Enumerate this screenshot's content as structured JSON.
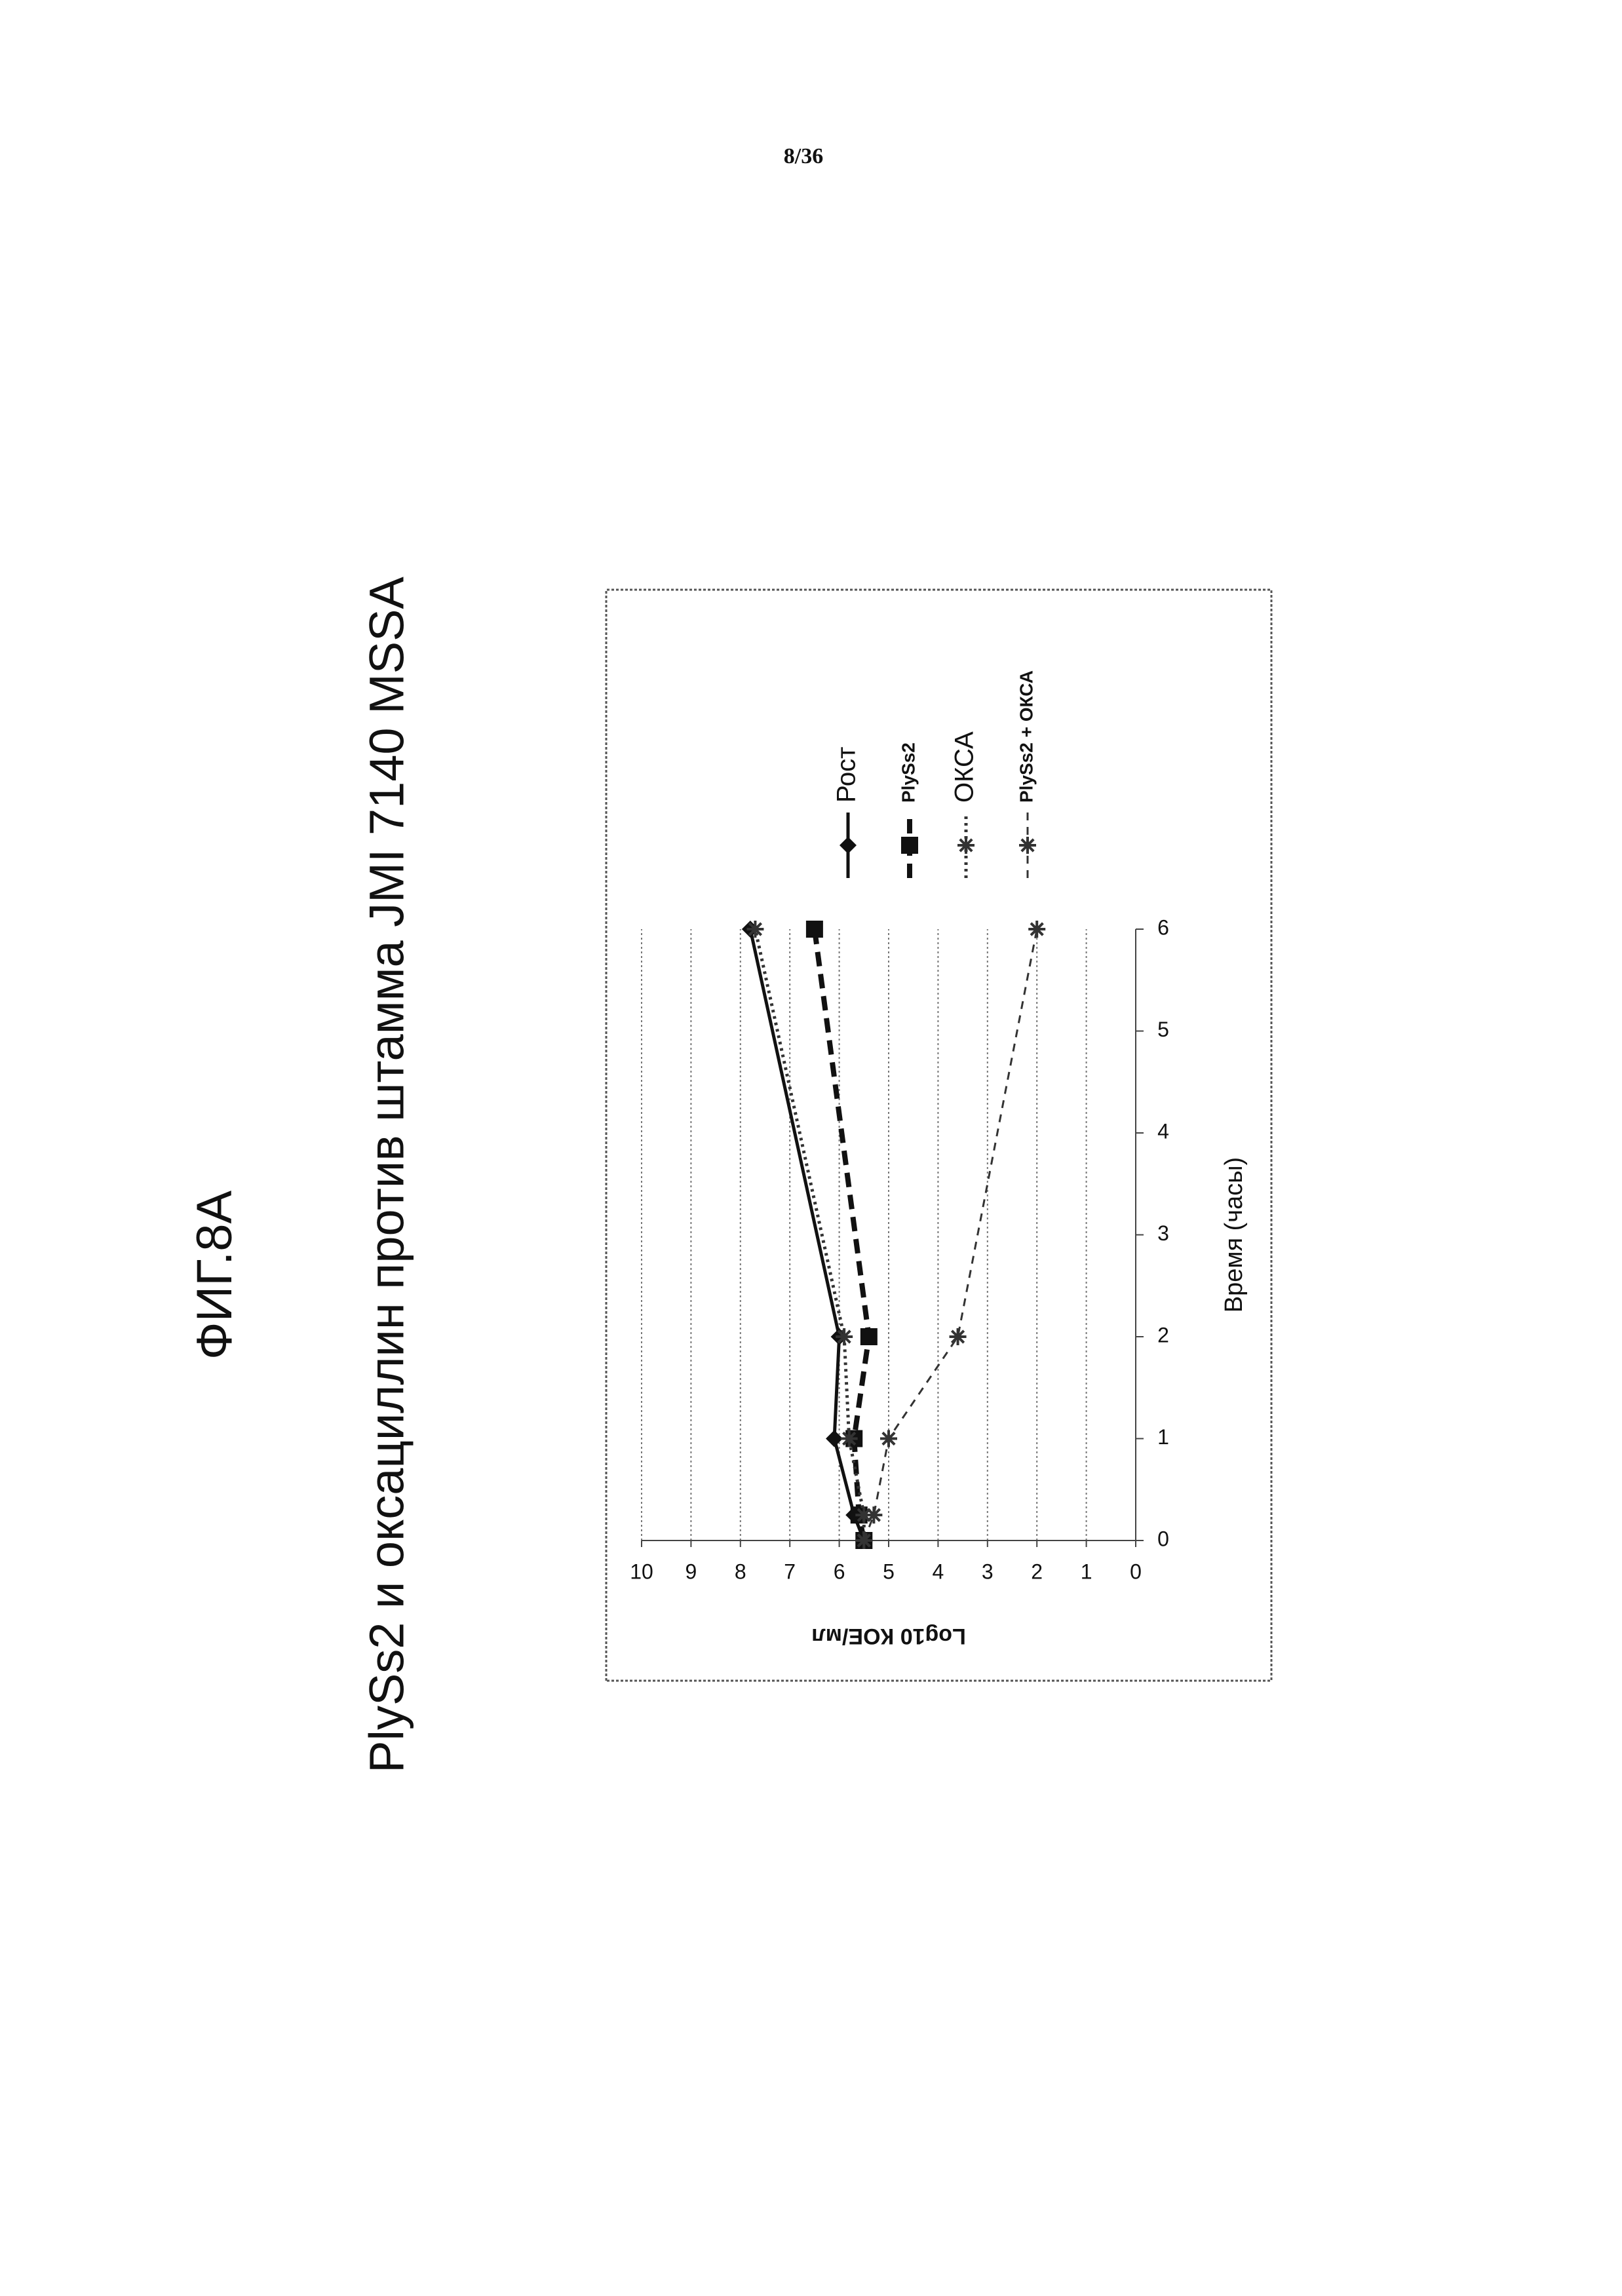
{
  "page_number": "8/36",
  "figure_label": "ФИГ.8А",
  "chart_data": {
    "type": "line",
    "title": "PlySs2 и оксациллин против штамма JMI 7140 MSSA",
    "x_label": "Время (часы)",
    "y_label": "Log10 КОЕ/мл",
    "x": [
      0,
      0.25,
      1,
      2,
      6
    ],
    "xlim": [
      0,
      6
    ],
    "xticks": [
      0,
      1,
      2,
      3,
      4,
      5,
      6
    ],
    "ylim": [
      0,
      10
    ],
    "yticks": [
      0,
      1,
      2,
      3,
      4,
      5,
      6,
      7,
      8,
      9,
      10
    ],
    "grid": true,
    "series": [
      {
        "name": "Рост",
        "color": "#111111",
        "marker": "diamond",
        "dash": "solid",
        "values": [
          5.5,
          5.7,
          6.1,
          6.0,
          7.8
        ]
      },
      {
        "name": "PlySs2",
        "color": "#111111",
        "marker": "square",
        "dash": "dashed",
        "values": [
          5.5,
          5.6,
          5.7,
          5.4,
          6.5
        ]
      },
      {
        "name": "ОКСА",
        "color": "#333333",
        "marker": "star",
        "dash": "dotted",
        "values": [
          5.5,
          5.5,
          5.8,
          5.9,
          7.7
        ]
      },
      {
        "name": "PlySs2 + ОКСА",
        "color": "#333333",
        "marker": "star",
        "dash": "thin-dashed",
        "values": [
          5.5,
          5.3,
          5.0,
          3.6,
          2.0
        ]
      }
    ]
  }
}
